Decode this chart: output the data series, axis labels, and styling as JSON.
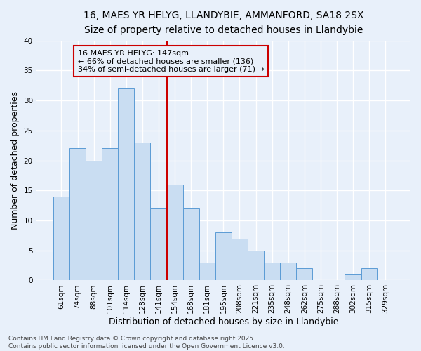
{
  "title_line1": "16, MAES YR HELYG, LLANDYBIE, AMMANFORD, SA18 2SX",
  "title_line2": "Size of property relative to detached houses in Llandybie",
  "xlabel": "Distribution of detached houses by size in Llandybie",
  "ylabel": "Number of detached properties",
  "categories": [
    "61sqm",
    "74sqm",
    "88sqm",
    "101sqm",
    "114sqm",
    "128sqm",
    "141sqm",
    "154sqm",
    "168sqm",
    "181sqm",
    "195sqm",
    "208sqm",
    "221sqm",
    "235sqm",
    "248sqm",
    "262sqm",
    "275sqm",
    "288sqm",
    "302sqm",
    "315sqm",
    "329sqm"
  ],
  "values": [
    14,
    22,
    20,
    22,
    32,
    23,
    12,
    16,
    12,
    3,
    8,
    7,
    5,
    3,
    3,
    2,
    0,
    0,
    1,
    2,
    0
  ],
  "bar_color": "#c9ddf2",
  "bar_edge_color": "#5b9bd5",
  "vline_x_index": 6.5,
  "vline_color": "#cc0000",
  "annotation_text": "16 MAES YR HELYG: 147sqm\n← 66% of detached houses are smaller (136)\n34% of semi-detached houses are larger (71) →",
  "annotation_box_edge_color": "#cc0000",
  "ylim": [
    0,
    40
  ],
  "yticks": [
    0,
    5,
    10,
    15,
    20,
    25,
    30,
    35,
    40
  ],
  "background_color": "#e8f0fa",
  "grid_color": "#ffffff",
  "footer_text": "Contains HM Land Registry data © Crown copyright and database right 2025.\nContains public sector information licensed under the Open Government Licence v3.0.",
  "title_fontsize": 10,
  "subtitle_fontsize": 9,
  "axis_label_fontsize": 9,
  "tick_fontsize": 7.5,
  "annotation_fontsize": 8,
  "footer_fontsize": 6.5
}
